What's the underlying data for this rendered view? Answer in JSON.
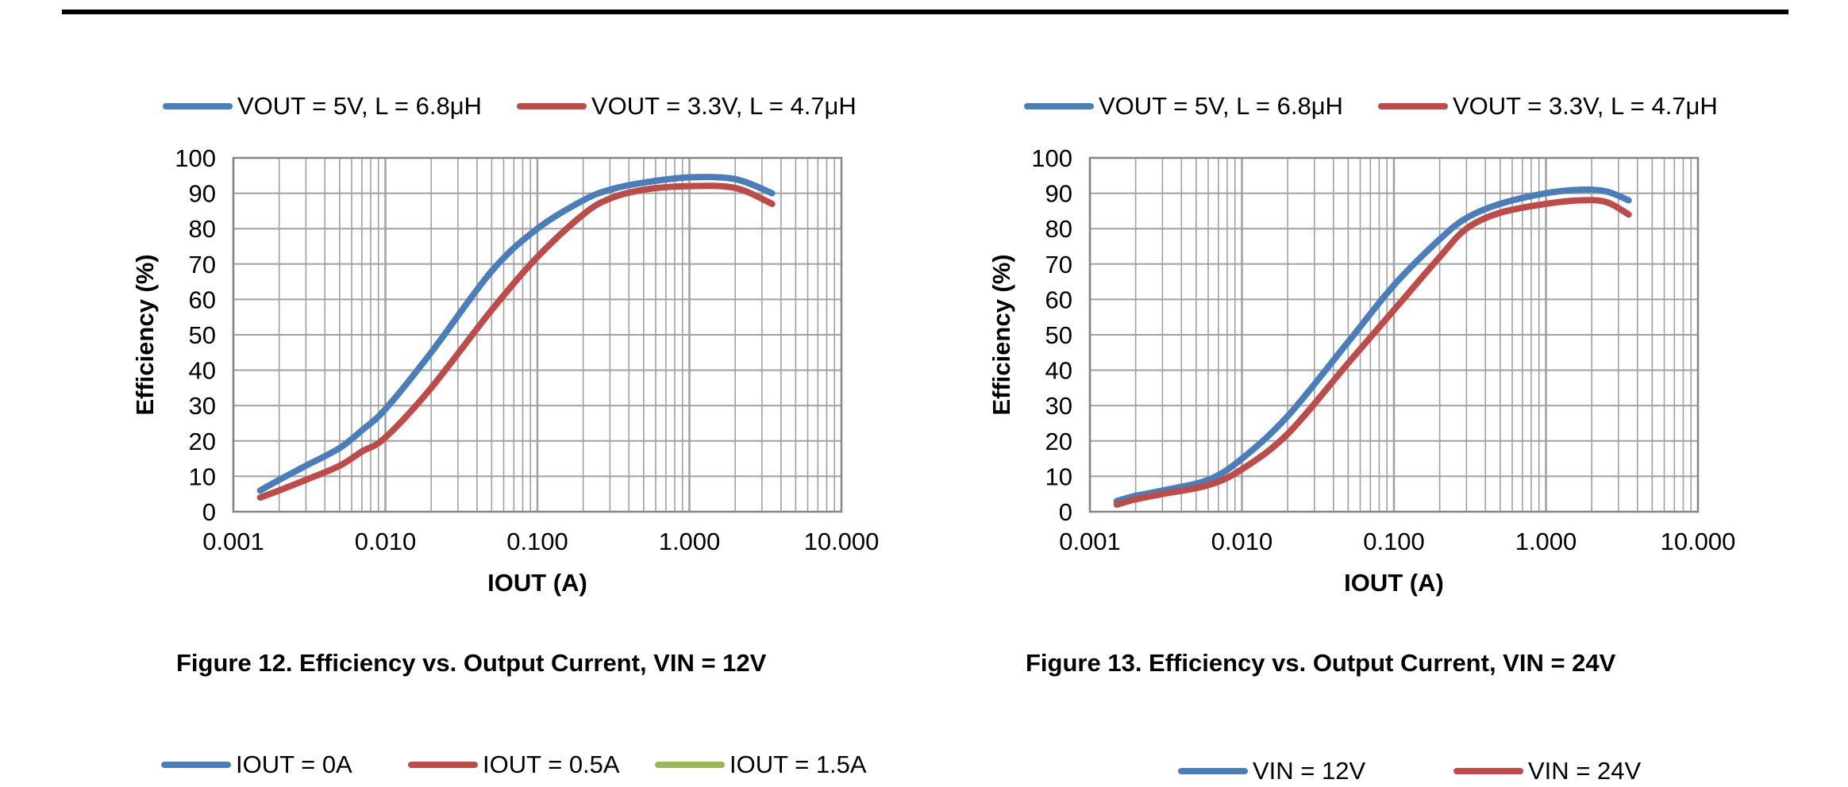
{
  "colors": {
    "blue": "#4a7ebb",
    "red": "#be4b48",
    "green": "#98b954",
    "grid": "#a0a0a0",
    "frame": "#868686"
  },
  "chart_data": [
    {
      "type": "line",
      "caption": "Figure 12. Efficiency vs. Output Current, VIN = 12V",
      "xlabel": "IOUT (A)",
      "ylabel": "Efficiency (%)",
      "xscale": "log",
      "xlim": [
        0.001,
        10
      ],
      "ylim": [
        0,
        100
      ],
      "grid": true,
      "legend_position": "top",
      "x_ticks": [
        "0.001",
        "0.010",
        "0.100",
        "1.000",
        "10.000"
      ],
      "y_ticks": [
        "0",
        "10",
        "20",
        "30",
        "40",
        "50",
        "60",
        "70",
        "80",
        "90",
        "100"
      ],
      "series": [
        {
          "name": "VOUT = 5V, L = 6.8μH",
          "color": "blue",
          "x": [
            0.0015,
            0.002,
            0.003,
            0.005,
            0.007,
            0.01,
            0.02,
            0.05,
            0.1,
            0.2,
            0.3,
            0.5,
            1,
            2,
            3.5
          ],
          "y": [
            6,
            9,
            13,
            18,
            23,
            29,
            45,
            68,
            80,
            88,
            91,
            93,
            94.5,
            94,
            90
          ]
        },
        {
          "name": "VOUT = 3.3V, L = 4.7μH",
          "color": "red",
          "x": [
            0.0015,
            0.002,
            0.003,
            0.005,
            0.007,
            0.01,
            0.02,
            0.05,
            0.1,
            0.2,
            0.3,
            0.5,
            1,
            2,
            3.5
          ],
          "y": [
            4,
            6,
            9,
            13,
            17,
            21,
            35,
            57,
            72,
            84,
            88.5,
            91,
            92,
            91.5,
            87
          ]
        }
      ]
    },
    {
      "type": "line",
      "caption": "Figure 13. Efficiency vs. Output Current, VIN = 24V",
      "xlabel": "IOUT (A)",
      "ylabel": "Efficiency (%)",
      "xscale": "log",
      "xlim": [
        0.001,
        10
      ],
      "ylim": [
        0,
        100
      ],
      "grid": true,
      "legend_position": "top",
      "x_ticks": [
        "0.001",
        "0.010",
        "0.100",
        "1.000",
        "10.000"
      ],
      "y_ticks": [
        "0",
        "10",
        "20",
        "30",
        "40",
        "50",
        "60",
        "70",
        "80",
        "90",
        "100"
      ],
      "series": [
        {
          "name": "VOUT = 5V, L = 6.8μH",
          "color": "blue",
          "x": [
            0.0015,
            0.002,
            0.003,
            0.006,
            0.01,
            0.02,
            0.05,
            0.1,
            0.2,
            0.3,
            0.5,
            1,
            1.7,
            2.5,
            3.5
          ],
          "y": [
            3,
            4.5,
            6,
            9,
            15,
            27,
            48,
            64,
            77,
            83,
            87,
            90,
            91,
            90.5,
            88
          ]
        },
        {
          "name": "VOUT = 3.3V, L = 4.7μH",
          "color": "red",
          "x": [
            0.0015,
            0.002,
            0.003,
            0.006,
            0.01,
            0.02,
            0.05,
            0.1,
            0.2,
            0.3,
            0.5,
            1,
            1.7,
            2.5,
            3.5
          ],
          "y": [
            2,
            3.5,
            5,
            7.5,
            12,
            22,
            42,
            57,
            72,
            80,
            84.5,
            87,
            88,
            87.5,
            84
          ]
        }
      ]
    }
  ],
  "bottom_legends": [
    {
      "items": [
        {
          "label": "IOUT = 0A",
          "color": "blue"
        },
        {
          "label": "IOUT = 0.5A",
          "color": "red"
        },
        {
          "label": "IOUT = 1.5A",
          "color": "green"
        }
      ]
    },
    {
      "items": [
        {
          "label": "VIN = 12V",
          "color": "blue"
        },
        {
          "label": "VIN = 24V",
          "color": "red"
        }
      ]
    }
  ]
}
